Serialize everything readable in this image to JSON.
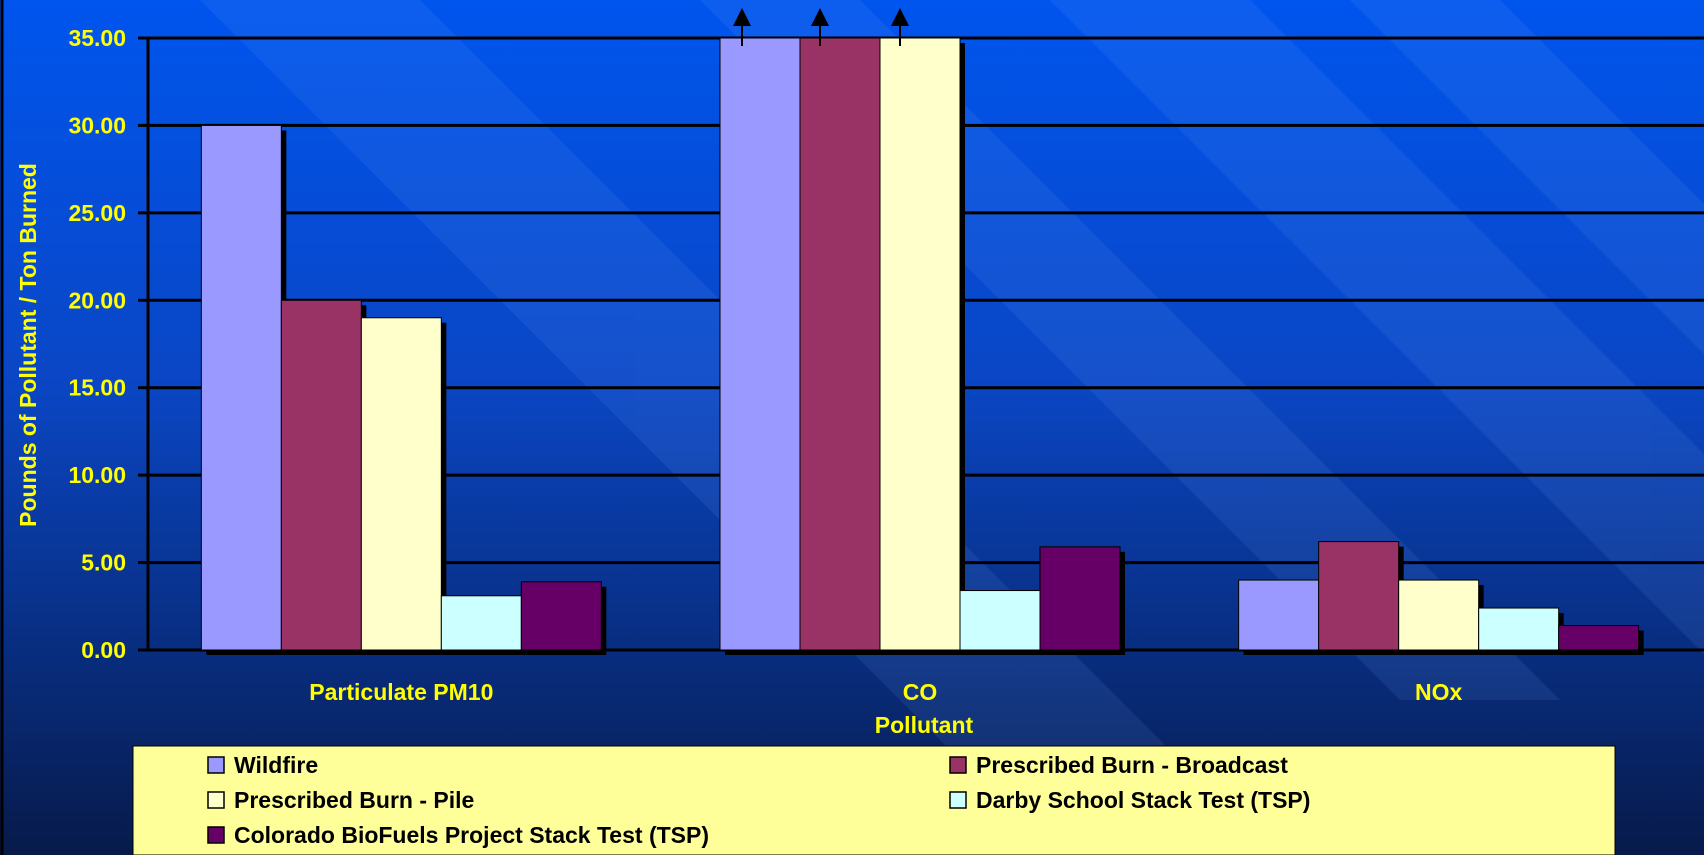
{
  "chart_data": {
    "type": "bar",
    "title": "",
    "xlabel": "Pollutant",
    "ylabel": "Pounds of Pollutant / Ton Burned",
    "ylim": [
      0,
      35
    ],
    "yticks": [
      "0.00",
      "5.00",
      "10.00",
      "15.00",
      "20.00",
      "25.00",
      "30.00",
      "35.00"
    ],
    "grid": true,
    "legend_position": "bottom",
    "categories": [
      "Particulate PM10",
      "CO",
      "NOx"
    ],
    "series": [
      {
        "name": "Wildfire",
        "color": "#9999ff",
        "values": [
          30.0,
          35.0,
          4.0
        ]
      },
      {
        "name": "Prescribed Burn - Broadcast",
        "color": "#993366",
        "values": [
          20.0,
          35.0,
          6.2
        ]
      },
      {
        "name": "Prescribed Burn - Pile",
        "color": "#ffffcc",
        "values": [
          19.0,
          35.0,
          4.0
        ]
      },
      {
        "name": "Darby School Stack Test (TSP)",
        "color": "#ccffff",
        "values": [
          3.1,
          3.4,
          2.4
        ]
      },
      {
        "name": "Colorado BioFuels Project Stack Test (TSP)",
        "color": "#660066",
        "values": [
          3.9,
          5.9,
          1.4
        ]
      }
    ],
    "off_scale": [
      {
        "series": 0,
        "category": 1
      },
      {
        "series": 1,
        "category": 1
      },
      {
        "series": 2,
        "category": 1
      }
    ],
    "colors": {
      "background_top": "#0055ee",
      "background_bottom": "#071a4a",
      "text": "#ffff00",
      "gridline": "#000000",
      "legend_bg": "#ffff99"
    }
  }
}
